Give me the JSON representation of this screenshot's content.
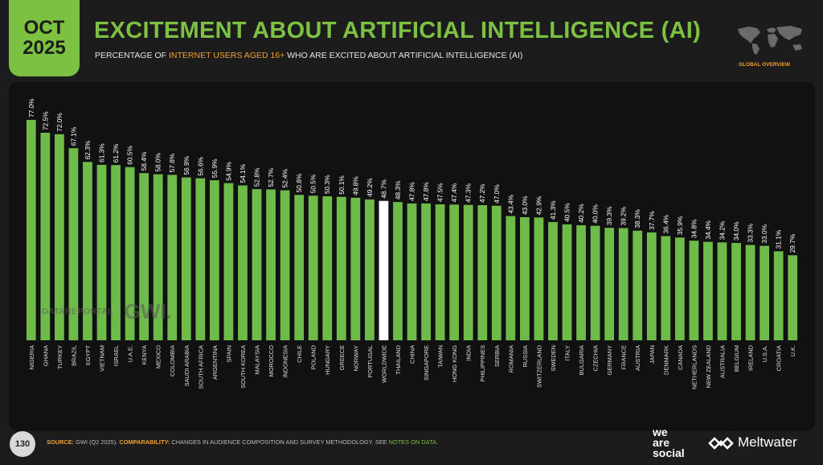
{
  "header": {
    "date_line1": "OCT",
    "date_line2": "2025",
    "title": "EXCITEMENT ABOUT ARTIFICIAL INTELLIGENCE (AI)",
    "subtitle_pre": "PERCENTAGE OF ",
    "subtitle_highlight": "INTERNET USERS AGED 16+",
    "subtitle_post": " WHO ARE EXCITED ABOUT ARTIFICIAL INTELLIGENCE (AI)",
    "section_label": "GLOBAL OVERVIEW"
  },
  "watermark": {
    "datareportal": "DATAREPORTAL",
    "gwi": "GWI."
  },
  "footer": {
    "page_number": "130",
    "source_key": "SOURCE:",
    "source_val": " GWI (Q2 2025). ",
    "comparability_key": "COMPARABILITY:",
    "comparability_val": " CHANGES IN AUDIENCE COMPOSITION AND SURVEY METHODOLOGY. SEE ",
    "notes_link": "NOTES ON DATA",
    "notes_end": ".",
    "brand1_line1": "we",
    "brand1_line2": "are",
    "brand1_line3": "social",
    "brand2": "Meltwater"
  },
  "colors": {
    "bar": "#6fbb4a",
    "highlight_bar": "#ffffff",
    "accent_green": "#7cc142",
    "accent_orange": "#f0a030"
  },
  "chart_data": {
    "type": "bar",
    "categories": [
      "NIGERIA",
      "GHANA",
      "TURKEY",
      "BRAZIL",
      "EGYPT",
      "VIETNAM",
      "ISRAEL",
      "U.A.E.",
      "KENYA",
      "MEXICO",
      "COLOMBIA",
      "SAUDI ARABIA",
      "SOUTH AFRICA",
      "ARGENTINA",
      "SPAIN",
      "SOUTH KOREA",
      "MALAYSIA",
      "MOROCCO",
      "INDONESIA",
      "CHILE",
      "POLAND",
      "HUNGARY",
      "GREECE",
      "NORWAY",
      "PORTUGAL",
      "WORLDWIDE",
      "THAILAND",
      "CHINA",
      "SINGAPORE",
      "TAIWAN",
      "HONG KONG",
      "INDIA",
      "PHILIPPINES",
      "SERBIA",
      "ROMANIA",
      "RUSSIA",
      "SWITZERLAND",
      "SWEDEN",
      "ITALY",
      "BULGARIA",
      "CZECHIA",
      "GERMANY",
      "FRANCE",
      "AUSTRIA",
      "JAPAN",
      "DENMARK",
      "CANADA",
      "NETHERLANDS",
      "NEW ZEALAND",
      "AUSTRALIA",
      "BELGIUM",
      "IRELAND",
      "U.S.A.",
      "CROATIA",
      "U.K."
    ],
    "values": [
      77.0,
      72.5,
      72.0,
      67.1,
      62.3,
      61.3,
      61.2,
      60.5,
      58.4,
      58.0,
      57.8,
      56.9,
      56.6,
      55.9,
      54.9,
      54.1,
      52.8,
      52.7,
      52.4,
      50.8,
      50.5,
      50.3,
      50.1,
      49.8,
      49.2,
      48.7,
      48.3,
      47.8,
      47.8,
      47.5,
      47.4,
      47.3,
      47.2,
      47.0,
      43.4,
      43.0,
      42.9,
      41.3,
      40.5,
      40.2,
      40.0,
      39.3,
      39.2,
      38.3,
      37.7,
      36.4,
      35.9,
      34.8,
      34.4,
      34.2,
      34.0,
      33.3,
      33.0,
      31.1,
      29.7
    ],
    "labels": [
      "77.0%",
      "72.5%",
      "72.0%",
      "67.1%",
      "62.3%",
      "61.3%",
      "61.2%",
      "60.5%",
      "58.4%",
      "58.0%",
      "57.8%",
      "56.9%",
      "56.6%",
      "55.9%",
      "54.9%",
      "54.1%",
      "52.8%",
      "52.7%",
      "52.4%",
      "50.8%",
      "50.5%",
      "50.3%",
      "50.1%",
      "49.8%",
      "49.2%",
      "48.7%",
      "48.3%",
      "47.8%",
      "47.8%",
      "47.5%",
      "47.4%",
      "47.3%",
      "47.2%",
      "47.0%",
      "43.4%",
      "43.0%",
      "42.9%",
      "41.3%",
      "40.5%",
      "40.2%",
      "40.0%",
      "39.3%",
      "39.2%",
      "38.3%",
      "37.7%",
      "36.4%",
      "35.9%",
      "34.8%",
      "34.4%",
      "34.2%",
      "34.0%",
      "33.3%",
      "33.0%",
      "31.1%",
      "29.7%"
    ],
    "highlight": "WORLDWIDE",
    "ylim": [
      0,
      77
    ]
  }
}
